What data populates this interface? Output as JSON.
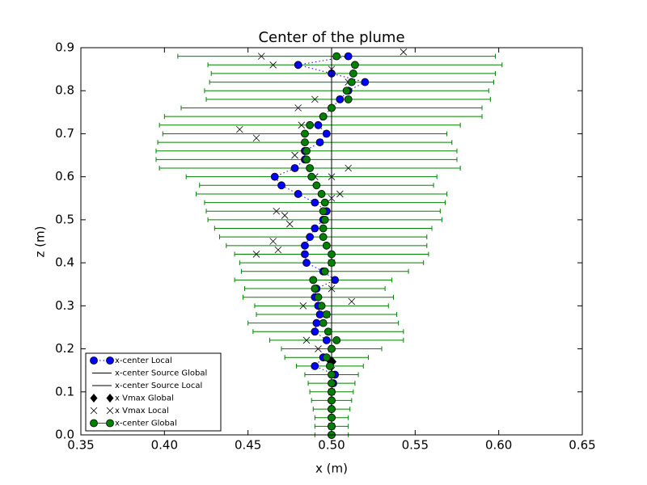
{
  "chart_data": {
    "type": "scatter",
    "title": "Center of the plume",
    "x_label": "x (m)",
    "y_label": "z (m)",
    "xlim": [
      0.35,
      0.65
    ],
    "ylim": [
      0,
      0.9
    ],
    "xticks": [
      0.35,
      {
        "value": 0.4,
        "label": "0.40"
      },
      0.45,
      {
        "value": 0.5,
        "label": "0.50"
      },
      0.55,
      {
        "value": 0.6,
        "label": "0.60"
      },
      0.65
    ],
    "yticks": [
      {
        "value": 0,
        "label": "0.0"
      },
      0.1,
      0.2,
      0.3,
      0.4,
      0.5,
      0.6,
      0.7,
      0.8,
      0.9
    ],
    "legend": "lower left",
    "series": [
      {
        "name": "x-center Local",
        "color": "#0000ff",
        "marker": "o",
        "linestyle": "dotted",
        "x": [
          0.5,
          0.5,
          0.5,
          0.5,
          0.5,
          0.5,
          0.501,
          0.502,
          0.49,
          0.495,
          0.5,
          0.497,
          0.49,
          0.491,
          0.493,
          0.492,
          0.49,
          0.491,
          0.502,
          0.495,
          0.485,
          0.484,
          0.484,
          0.487,
          0.49,
          0.495,
          0.497,
          0.49,
          0.48,
          0.47,
          0.466,
          0.478,
          0.484,
          0.484,
          0.493,
          0.497,
          0.492,
          0.495,
          0.5,
          0.505,
          0.51,
          0.52,
          0.5,
          0.48,
          0.51
        ],
        "y": [
          0,
          0.02,
          0.04,
          0.06,
          0.08,
          0.1,
          0.12,
          0.14,
          0.16,
          0.18,
          0.2,
          0.22,
          0.24,
          0.26,
          0.28,
          0.3,
          0.32,
          0.34,
          0.36,
          0.38,
          0.4,
          0.42,
          0.44,
          0.46,
          0.48,
          0.5,
          0.52,
          0.54,
          0.56,
          0.58,
          0.6,
          0.62,
          0.64,
          0.66,
          0.68,
          0.7,
          0.72,
          0.74,
          0.76,
          0.78,
          0.8,
          0.82,
          0.84,
          0.86,
          0.88
        ]
      },
      {
        "name": "x-center Source Global",
        "color": "#000000",
        "marker": "none",
        "linestyle": "solid",
        "x": [
          0.5,
          0.5
        ],
        "y": [
          0,
          0.9
        ]
      },
      {
        "name": "x-center Source Local",
        "color": "#000000",
        "marker": "none",
        "linestyle": "solid",
        "x": [
          0.5,
          0.5
        ],
        "y": [
          0,
          0.9
        ]
      },
      {
        "name": "x Vmax Global",
        "color": "#000000",
        "marker": "D",
        "linestyle": "none",
        "x": [
          0.5
        ],
        "y": [
          0.17
        ]
      },
      {
        "name": "x Vmax Local",
        "color": "#000000",
        "marker": "x",
        "linestyle": "none",
        "x": [
          0.5,
          0.5,
          0.5,
          0.492,
          0.485,
          0.497,
          0.483,
          0.512,
          0.5,
          0.5,
          0.455,
          0.468,
          0.465,
          0.475,
          0.472,
          0.467,
          0.5,
          0.505,
          0.5,
          0.51,
          0.49,
          0.478,
          0.445,
          0.455,
          0.482,
          0.48,
          0.49,
          0.51,
          0.5,
          0.465,
          0.458,
          0.543
        ],
        "y": [
          0.02,
          0.1,
          0.15,
          0.2,
          0.22,
          0.28,
          0.3,
          0.31,
          0.34,
          0.4,
          0.42,
          0.43,
          0.45,
          0.49,
          0.51,
          0.52,
          0.55,
          0.56,
          0.6,
          0.62,
          0.6,
          0.65,
          0.71,
          0.69,
          0.72,
          0.76,
          0.78,
          0.82,
          0.85,
          0.86,
          0.88,
          0.89
        ]
      },
      {
        "name": "x-center Global",
        "color": "#008000",
        "marker": "o",
        "linestyle": "none",
        "x": [
          0.5,
          0.5,
          0.5,
          0.5,
          0.5,
          0.5,
          0.5,
          0.5,
          0.499,
          0.497,
          0.5,
          0.503,
          0.498,
          0.495,
          0.497,
          0.494,
          0.492,
          0.49,
          0.489,
          0.496,
          0.5,
          0.5,
          0.497,
          0.495,
          0.495,
          0.496,
          0.495,
          0.496,
          0.494,
          0.491,
          0.488,
          0.487,
          0.485,
          0.485,
          0.484,
          0.484,
          0.487,
          0.495,
          0.5,
          0.51,
          0.509,
          0.512,
          0.513,
          0.514,
          0.503
        ],
        "y": [
          0,
          0.02,
          0.04,
          0.06,
          0.08,
          0.1,
          0.12,
          0.14,
          0.16,
          0.18,
          0.2,
          0.22,
          0.24,
          0.26,
          0.28,
          0.3,
          0.32,
          0.34,
          0.36,
          0.38,
          0.4,
          0.42,
          0.44,
          0.46,
          0.48,
          0.5,
          0.52,
          0.54,
          0.56,
          0.58,
          0.6,
          0.62,
          0.64,
          0.66,
          0.68,
          0.7,
          0.72,
          0.74,
          0.76,
          0.78,
          0.8,
          0.82,
          0.84,
          0.86,
          0.88
        ],
        "xerr": [
          0.01,
          0.01,
          0.01,
          0.011,
          0.012,
          0.013,
          0.014,
          0.016,
          0.02,
          0.025,
          0.03,
          0.04,
          0.045,
          0.045,
          0.042,
          0.04,
          0.045,
          0.042,
          0.047,
          0.05,
          0.055,
          0.058,
          0.06,
          0.062,
          0.065,
          0.07,
          0.07,
          0.072,
          0.075,
          0.07,
          0.075,
          0.09,
          0.09,
          0.09,
          0.088,
          0.085,
          0.09,
          0.095,
          0.09,
          0.085,
          0.085,
          0.085,
          0.085,
          0.088,
          0.095
        ]
      }
    ]
  }
}
